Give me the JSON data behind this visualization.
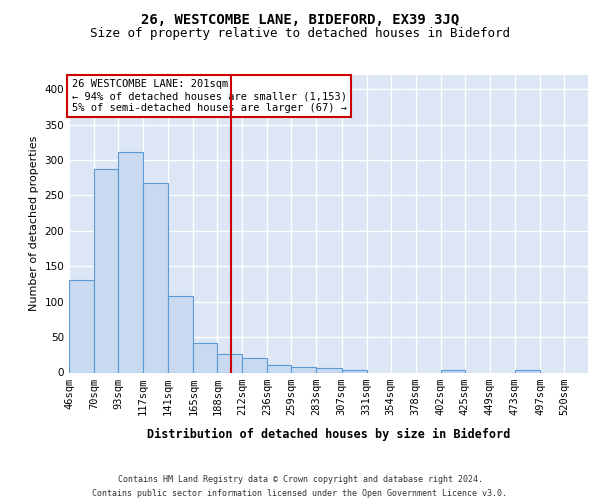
{
  "title1": "26, WESTCOMBE LANE, BIDEFORD, EX39 3JQ",
  "title2": "Size of property relative to detached houses in Bideford",
  "xlabel": "Distribution of detached houses by size in Bideford",
  "ylabel": "Number of detached properties",
  "footer1": "Contains HM Land Registry data © Crown copyright and database right 2024.",
  "footer2": "Contains public sector information licensed under the Open Government Licence v3.0.",
  "annotation_line1": "26 WESTCOMBE LANE: 201sqm",
  "annotation_line2": "← 94% of detached houses are smaller (1,153)",
  "annotation_line3": "5% of semi-detached houses are larger (67) →",
  "bar_color": "#c8d9f0",
  "bar_edge_color": "#5b9bd5",
  "vline_color": "#cc0000",
  "vline_x": 201,
  "bg_color": "#dce6f5",
  "categories": [
    "46sqm",
    "70sqm",
    "93sqm",
    "117sqm",
    "141sqm",
    "165sqm",
    "188sqm",
    "212sqm",
    "236sqm",
    "259sqm",
    "283sqm",
    "307sqm",
    "331sqm",
    "354sqm",
    "378sqm",
    "402sqm",
    "425sqm",
    "449sqm",
    "473sqm",
    "497sqm",
    "520sqm"
  ],
  "bin_edges": [
    46,
    70,
    93,
    117,
    141,
    165,
    188,
    212,
    236,
    259,
    283,
    307,
    331,
    354,
    378,
    402,
    425,
    449,
    473,
    497,
    520
  ],
  "bar_heights": [
    130,
    287,
    312,
    267,
    108,
    42,
    26,
    20,
    10,
    8,
    6,
    4,
    0,
    0,
    0,
    3,
    0,
    0,
    4,
    0,
    0
  ],
  "ylim": [
    0,
    420
  ],
  "yticks": [
    0,
    50,
    100,
    150,
    200,
    250,
    300,
    350,
    400
  ],
  "grid_color": "#ffffff",
  "title1_fontsize": 10,
  "title2_fontsize": 9,
  "xlabel_fontsize": 8.5,
  "ylabel_fontsize": 8,
  "tick_fontsize": 7.5,
  "footer_fontsize": 6,
  "annot_fontsize": 7.5
}
